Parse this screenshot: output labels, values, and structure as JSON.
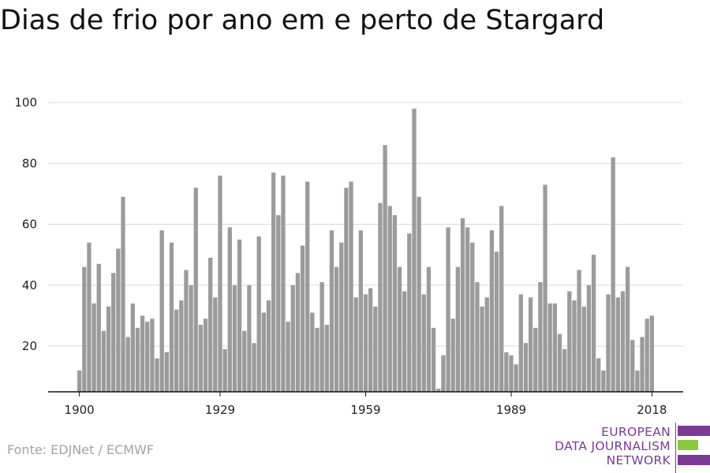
{
  "title": "Dias de frio por ano em e perto de Stargard",
  "source": "Fonte: EDJNet / ECMWF",
  "logo": {
    "line1": "EUROPEAN",
    "line2": "DATA JOURNALISM",
    "line3": "NETWORK"
  },
  "colors": {
    "bar": "#9b9b9b",
    "grid": "#d9d9d9",
    "axis": "#111111",
    "logo_purple": "#7b3a96",
    "logo_green": "#8bc63f"
  },
  "chart_data": {
    "type": "bar",
    "title": "Dias de frio por ano em e perto de Stargard",
    "xlabel": "",
    "ylabel": "",
    "ylim": [
      5,
      100
    ],
    "yticks": [
      20,
      40,
      60,
      80,
      100
    ],
    "xticks": [
      1900,
      1929,
      1959,
      1989,
      2018
    ],
    "grid": true,
    "x_start": 1900,
    "values": [
      12,
      46,
      54,
      34,
      47,
      25,
      33,
      44,
      52,
      69,
      23,
      34,
      26,
      30,
      28,
      29,
      16,
      58,
      18,
      54,
      32,
      35,
      45,
      40,
      72,
      27,
      29,
      49,
      36,
      76,
      19,
      59,
      40,
      55,
      25,
      40,
      21,
      56,
      31,
      35,
      77,
      63,
      76,
      28,
      40,
      44,
      53,
      74,
      31,
      26,
      41,
      27,
      58,
      46,
      54,
      72,
      74,
      36,
      58,
      37,
      39,
      33,
      67,
      86,
      66,
      63,
      46,
      38,
      57,
      98,
      69,
      37,
      46,
      26,
      6,
      17,
      59,
      29,
      46,
      62,
      59,
      54,
      41,
      33,
      36,
      58,
      51,
      66,
      18,
      17,
      14,
      37,
      21,
      36,
      26,
      41,
      73,
      34,
      34,
      24,
      19,
      38,
      35,
      45,
      33,
      40,
      50,
      16,
      12,
      37,
      82,
      36,
      38,
      46,
      22,
      12,
      23,
      29,
      30
    ]
  }
}
